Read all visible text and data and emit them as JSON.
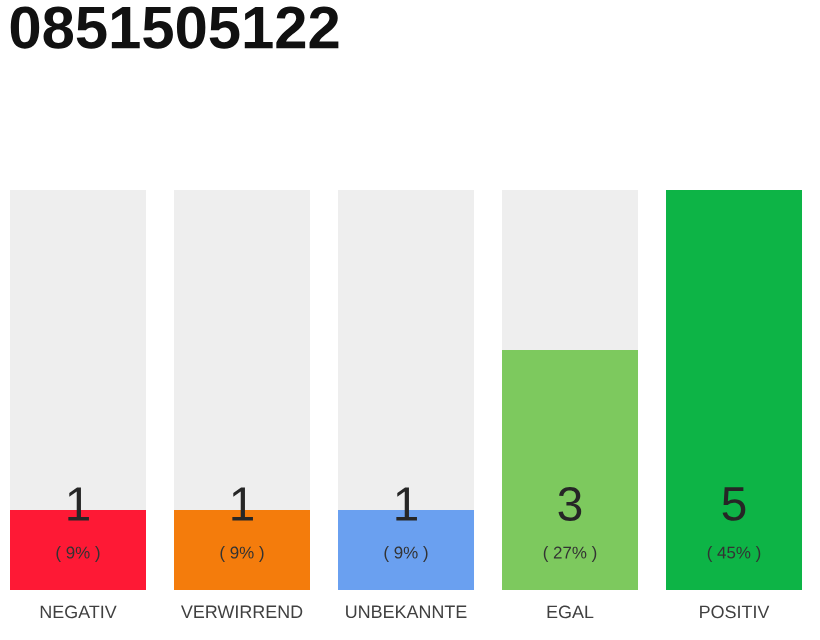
{
  "chart_data": {
    "type": "bar",
    "title": "0851505122",
    "categories": [
      "NEGATIV",
      "VERWIRREND",
      "UNBEKANNTE",
      "EGAL",
      "POSITIV"
    ],
    "values": [
      9,
      9,
      9,
      27,
      45
    ],
    "colors": [
      "#fe1935",
      "#f47c0c",
      "#6aa0f0",
      "#7dc95e",
      "#0db446"
    ],
    "value_labels": [
      "( 9% )",
      "( 9% )",
      "( 9% )",
      "( 27% )",
      "( 45% )"
    ],
    "annotations": [
      "1",
      "1",
      "1",
      "3",
      "5"
    ]
  }
}
